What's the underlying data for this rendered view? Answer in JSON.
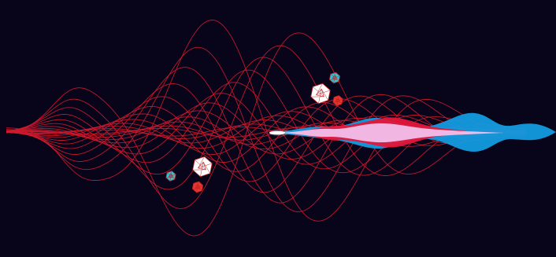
{
  "colors": {
    "background": "#08041a",
    "wave_lines": "#d0192c",
    "ribbon_blue": "#129be0",
    "ribbon_red": "#e3163a",
    "ribbon_pink": "#f3c4f0",
    "glint_white": "#ffffff",
    "polyhedron_white": "#ffffff",
    "polyhedron_red": "#e8372c",
    "polyhedron_cyan": "#28c6d8",
    "polyhedron_edge": "#c02024"
  },
  "icons": {
    "large_polyhedron_upper": "icosahedron-icon",
    "small_polyhedron_cyan_upper": "icosahedron-icon",
    "small_polyhedron_red_upper": "icosahedron-icon",
    "large_polyhedron_lower": "icosahedron-icon",
    "small_polyhedron_cyan_lower": "icosahedron-icon",
    "small_polyhedron_red_lower": "icosahedron-icon"
  }
}
